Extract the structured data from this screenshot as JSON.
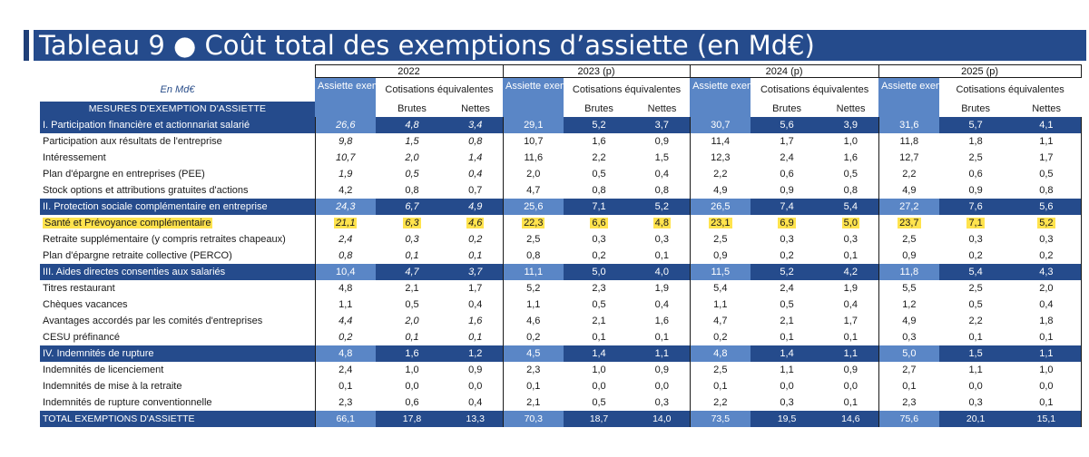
{
  "title": "Tableau 9 ● Coût total des exemptions d’assiette (en Md€)",
  "unit_label": "En Md€",
  "mesures_header": "MESURES D'EXEMPTION D'ASSIETTE",
  "years": [
    "2022",
    "2023 (p)",
    "2024 (p)",
    "2025 (p)"
  ],
  "col_assiette": "Assiette exemptée",
  "col_cotisations": "Cotisations équivalentes",
  "col_brutes": "Brutes",
  "col_nettes": "Nettes",
  "highlight_color": "#ffe34d",
  "colors": {
    "dark_blue": "#254b8c",
    "light_blue": "#5a86c6"
  },
  "rows": [
    {
      "type": "sec",
      "label": "I. Participation financière et actionnariat salarié",
      "italic2022": true,
      "values": [
        "26,6",
        "4,8",
        "3,4",
        "29,1",
        "5,2",
        "3,7",
        "30,7",
        "5,6",
        "3,9",
        "31,6",
        "5,7",
        "4,1"
      ]
    },
    {
      "type": "row",
      "label": "Participation aux résultats de l'entreprise",
      "italic2022": true,
      "values": [
        "9,8",
        "1,5",
        "0,8",
        "10,7",
        "1,6",
        "0,9",
        "11,4",
        "1,7",
        "1,0",
        "11,8",
        "1,8",
        "1,1"
      ]
    },
    {
      "type": "row",
      "label": "Intéressement",
      "italic2022": true,
      "values": [
        "10,7",
        "2,0",
        "1,4",
        "11,6",
        "2,2",
        "1,5",
        "12,3",
        "2,4",
        "1,6",
        "12,7",
        "2,5",
        "1,7"
      ]
    },
    {
      "type": "row",
      "label": "Plan d'épargne en entreprises (PEE)",
      "italic2022": true,
      "values": [
        "1,9",
        "0,5",
        "0,4",
        "2,0",
        "0,5",
        "0,4",
        "2,2",
        "0,6",
        "0,5",
        "2,2",
        "0,6",
        "0,5"
      ]
    },
    {
      "type": "row",
      "label": "Stock options et attributions gratuites d'actions",
      "italic2022": false,
      "values": [
        "4,2",
        "0,8",
        "0,7",
        "4,7",
        "0,8",
        "0,8",
        "4,9",
        "0,9",
        "0,8",
        "4,9",
        "0,9",
        "0,8"
      ]
    },
    {
      "type": "sec",
      "label": "II. Protection sociale complémentaire en entreprise",
      "italic2022": true,
      "values": [
        "24,3",
        "6,7",
        "4,9",
        "25,6",
        "7,1",
        "5,2",
        "26,5",
        "7,4",
        "5,4",
        "27,2",
        "7,6",
        "5,6"
      ]
    },
    {
      "type": "row",
      "label": "Santé et Prévoyance complémentaire",
      "italic2022": true,
      "highlight": true,
      "values": [
        "21,1",
        "6,3",
        "4,6",
        "22,3",
        "6,6",
        "4,8",
        "23,1",
        "6,9",
        "5,0",
        "23,7",
        "7,1",
        "5,2"
      ]
    },
    {
      "type": "row",
      "label": "Retraite supplémentaire (y compris retraites chapeaux)",
      "italic2022": true,
      "values": [
        "2,4",
        "0,3",
        "0,2",
        "2,5",
        "0,3",
        "0,3",
        "2,5",
        "0,3",
        "0,3",
        "2,5",
        "0,3",
        "0,3"
      ]
    },
    {
      "type": "row",
      "label": "Plan d'épargne retraite collective (PERCO)",
      "italic2022": true,
      "values": [
        "0,8",
        "0,1",
        "0,1",
        "0,8",
        "0,2",
        "0,1",
        "0,9",
        "0,2",
        "0,1",
        "0,9",
        "0,2",
        "0,2"
      ]
    },
    {
      "type": "sec",
      "label": "III. Aides directes consenties aux salariés",
      "italic2022": false,
      "italic_bn": true,
      "values": [
        "10,4",
        "4,7",
        "3,7",
        "11,1",
        "5,0",
        "4,0",
        "11,5",
        "5,2",
        "4,2",
        "11,8",
        "5,4",
        "4,3"
      ]
    },
    {
      "type": "row",
      "label": "Titres restaurant",
      "italic2022": false,
      "values": [
        "4,8",
        "2,1",
        "1,7",
        "5,2",
        "2,3",
        "1,9",
        "5,4",
        "2,4",
        "1,9",
        "5,5",
        "2,5",
        "2,0"
      ]
    },
    {
      "type": "row",
      "label": "Chèques vacances",
      "italic2022": false,
      "values": [
        "1,1",
        "0,5",
        "0,4",
        "1,1",
        "0,5",
        "0,4",
        "1,1",
        "0,5",
        "0,4",
        "1,2",
        "0,5",
        "0,4"
      ]
    },
    {
      "type": "row",
      "label": "Avantages accordés par les comités d'entreprises",
      "italic2022": true,
      "values": [
        "4,4",
        "2,0",
        "1,6",
        "4,6",
        "2,1",
        "1,6",
        "4,7",
        "2,1",
        "1,7",
        "4,9",
        "2,2",
        "1,8"
      ]
    },
    {
      "type": "row",
      "label": "CESU préfinancé",
      "italic2022": true,
      "values": [
        "0,2",
        "0,1",
        "0,1",
        "0,2",
        "0,1",
        "0,1",
        "0,2",
        "0,1",
        "0,1",
        "0,3",
        "0,1",
        "0,1"
      ]
    },
    {
      "type": "sec",
      "label": "IV. Indemnités de rupture",
      "italic2022": false,
      "values": [
        "4,8",
        "1,6",
        "1,2",
        "4,5",
        "1,4",
        "1,1",
        "4,8",
        "1,4",
        "1,1",
        "5,0",
        "1,5",
        "1,1"
      ]
    },
    {
      "type": "row",
      "label": "Indemnités de licenciement",
      "italic2022": false,
      "values": [
        "2,4",
        "1,0",
        "0,9",
        "2,3",
        "1,0",
        "0,9",
        "2,5",
        "1,1",
        "0,9",
        "2,7",
        "1,1",
        "1,0"
      ]
    },
    {
      "type": "row",
      "label": "Indemnités de mise à la retraite",
      "italic2022": false,
      "values": [
        "0,1",
        "0,0",
        "0,0",
        "0,1",
        "0,0",
        "0,0",
        "0,1",
        "0,0",
        "0,0",
        "0,1",
        "0,0",
        "0,0"
      ]
    },
    {
      "type": "row",
      "label": "Indemnités de rupture conventionnelle",
      "italic2022": false,
      "values": [
        "2,3",
        "0,6",
        "0,4",
        "2,1",
        "0,5",
        "0,3",
        "2,2",
        "0,3",
        "0,1",
        "2,3",
        "0,3",
        "0,1"
      ]
    },
    {
      "type": "total",
      "label": "TOTAL EXEMPTIONS D'ASSIETTE",
      "italic2022": false,
      "values": [
        "66,1",
        "17,8",
        "13,3",
        "70,3",
        "18,7",
        "14,0",
        "73,5",
        "19,5",
        "14,6",
        "75,6",
        "20,1",
        "15,1"
      ]
    }
  ]
}
